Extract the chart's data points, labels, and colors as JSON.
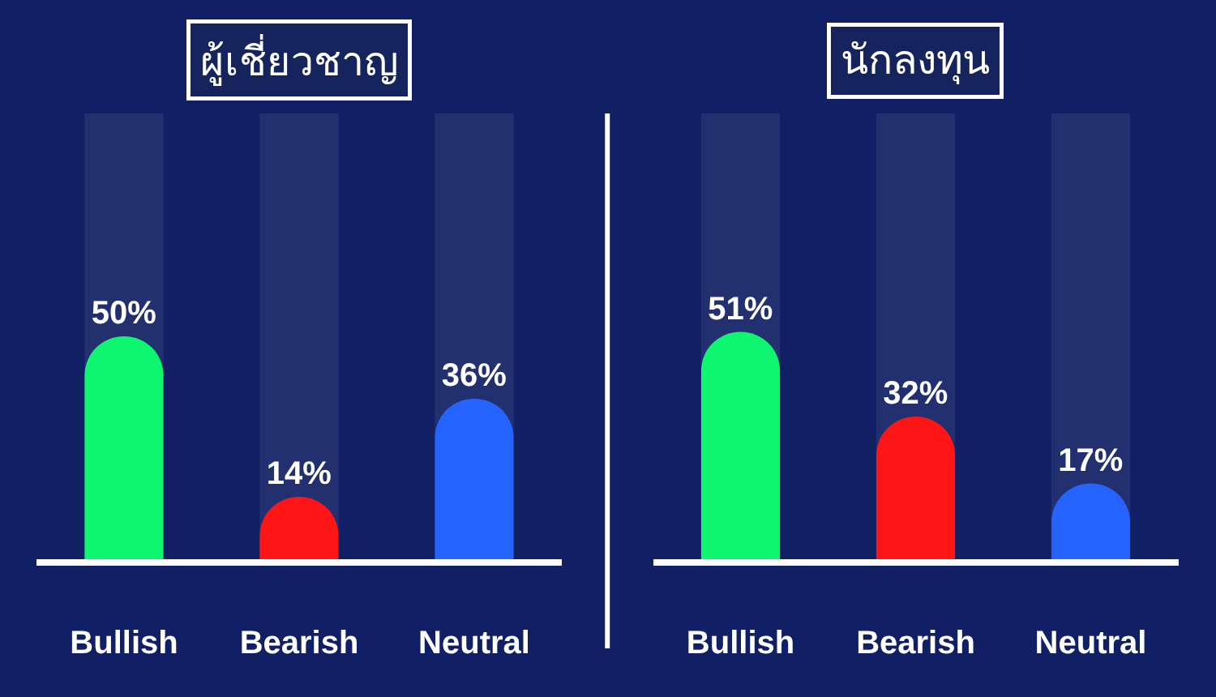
{
  "chart_data": [
    {
      "type": "bar",
      "title": "ผู้เชี่ยวชาญ",
      "categories": [
        "Bullish",
        "Bearish",
        "Neutral"
      ],
      "values": [
        50,
        14,
        36
      ],
      "colors": [
        "#0ef56f",
        "#fe1515",
        "#2563ff"
      ],
      "value_labels": [
        "50%",
        "14%",
        "36%"
      ],
      "ylim": [
        0,
        100
      ],
      "tick_labels": "x"
    },
    {
      "type": "bar",
      "title": "นักลงทุน",
      "categories": [
        "Bullish",
        "Bearish",
        "Neutral"
      ],
      "values": [
        51,
        32,
        17
      ],
      "colors": [
        "#0ef56f",
        "#fe1515",
        "#2563ff"
      ],
      "value_labels": [
        "51%",
        "32%",
        "17%"
      ],
      "ylim": [
        0,
        100
      ],
      "tick_labels": "x"
    }
  ]
}
